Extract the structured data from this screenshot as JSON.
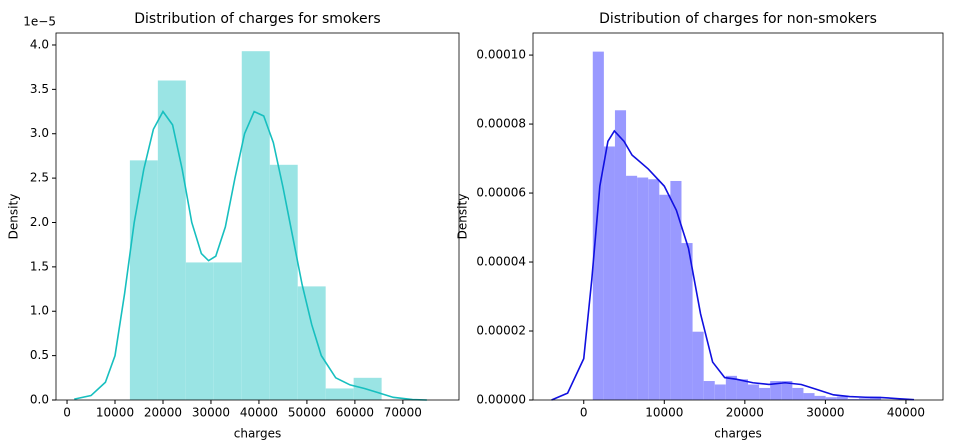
{
  "chart_data": [
    {
      "type": "histogram",
      "title": "Distribution of charges for smokers",
      "xlabel": "charges",
      "ylabel": "Density",
      "y_offset_text": "1e−5",
      "bins": [
        13100,
        18930,
        24760,
        30590,
        36420,
        42250,
        48080,
        53910,
        59740,
        65570
      ],
      "values": [
        2.7,
        3.6,
        1.55,
        1.55,
        3.93,
        2.65,
        1.28,
        0.13,
        0.25
      ],
      "color": "#9ae4e4",
      "line": {
        "color": "#17bfbf",
        "x": [
          1500,
          5000,
          8000,
          10000,
          12000,
          14000,
          16000,
          18000,
          20000,
          22000,
          24000,
          26000,
          28000,
          29500,
          31000,
          33000,
          35000,
          37000,
          39000,
          41000,
          43000,
          45000,
          47000,
          49000,
          51000,
          53000,
          56000,
          59000,
          62000,
          65000,
          68000,
          72000,
          75000
        ],
        "values": [
          0.01,
          0.05,
          0.2,
          0.5,
          1.2,
          2.0,
          2.6,
          3.05,
          3.25,
          3.1,
          2.6,
          2.0,
          1.65,
          1.57,
          1.62,
          1.95,
          2.5,
          3.0,
          3.25,
          3.2,
          2.9,
          2.4,
          1.85,
          1.3,
          0.85,
          0.5,
          0.25,
          0.17,
          0.13,
          0.08,
          0.03,
          0.005,
          0
        ]
      },
      "xlim": [
        -2300,
        81700
      ],
      "xticks": [
        0,
        10000,
        20000,
        30000,
        40000,
        50000,
        60000,
        70000
      ],
      "ylim": [
        0,
        4.135
      ],
      "yticks": [
        {
          "value": 0,
          "label": "0.0"
        },
        0.5,
        {
          "value": 1,
          "label": "1.0"
        },
        1.5,
        {
          "value": 2,
          "label": "2.0"
        },
        2.5,
        {
          "value": 3,
          "label": "3.0"
        },
        3.5,
        {
          "value": 4,
          "label": "4.0"
        }
      ]
    },
    {
      "type": "histogram",
      "title": "Distribution of charges for non-smokers",
      "xlabel": "charges",
      "ylabel": "Density",
      "bins": [
        1121,
        2498,
        3874,
        5251,
        6627,
        8004,
        9380,
        10757,
        12133,
        13510,
        14886,
        16263,
        17639,
        19016,
        20392,
        21769,
        23145,
        24522,
        25898,
        27275,
        28651,
        30028,
        31404,
        32781,
        34157,
        35534,
        36910
      ],
      "values": [
        0.000101,
        7.35e-05,
        8.4e-05,
        6.5e-05,
        6.45e-05,
        6.4e-05,
        5.95e-05,
        6.35e-05,
        4.55e-05,
        1.98e-05,
        5.5e-06,
        4.5e-06,
        7e-06,
        6e-06,
        4.5e-06,
        3.5e-06,
        5.5e-06,
        5.5e-06,
        3.5e-06,
        2e-06,
        1.2e-06,
        8e-07,
        1e-06,
        3e-07,
        5e-07,
        1e-06
      ],
      "color": "#9999ff",
      "line": {
        "color": "#1010e0",
        "x": [
          -4000,
          -2000,
          0,
          1000,
          2000,
          3000,
          3800,
          5000,
          6000,
          8000,
          10000,
          11500,
          13000,
          14500,
          16000,
          17500,
          19000,
          21000,
          23000,
          25000,
          27000,
          29000,
          31000,
          33000,
          35000,
          37000,
          39000,
          41000
        ],
        "values": [
          0,
          2e-06,
          1.2e-05,
          3.5e-05,
          6.2e-05,
          7.5e-05,
          7.8e-05,
          7.5e-05,
          7.1e-05,
          6.7e-05,
          6.2e-05,
          5.5e-05,
          4.4e-05,
          2.5e-05,
          1.1e-05,
          6.5e-06,
          6e-06,
          5e-06,
          4.5e-06,
          5e-06,
          4.5e-06,
          3e-06,
          1.5e-06,
          1e-06,
          8e-07,
          7e-07,
          4e-07,
          1e-07
        ]
      },
      "xlim": [
        -6300,
        44600
      ],
      "xticks": [
        0,
        10000,
        20000,
        30000,
        40000
      ],
      "ylim": [
        0,
        0.0001064
      ],
      "yticks": [
        {
          "value": 0,
          "label": "0.00000"
        },
        {
          "value": 2e-05,
          "label": "0.00002"
        },
        {
          "value": 4e-05,
          "label": "0.00004"
        },
        {
          "value": 6e-05,
          "label": "0.00006"
        },
        {
          "value": 8e-05,
          "label": "0.00008"
        },
        {
          "value": 0.0001,
          "label": "0.00010"
        }
      ]
    }
  ]
}
